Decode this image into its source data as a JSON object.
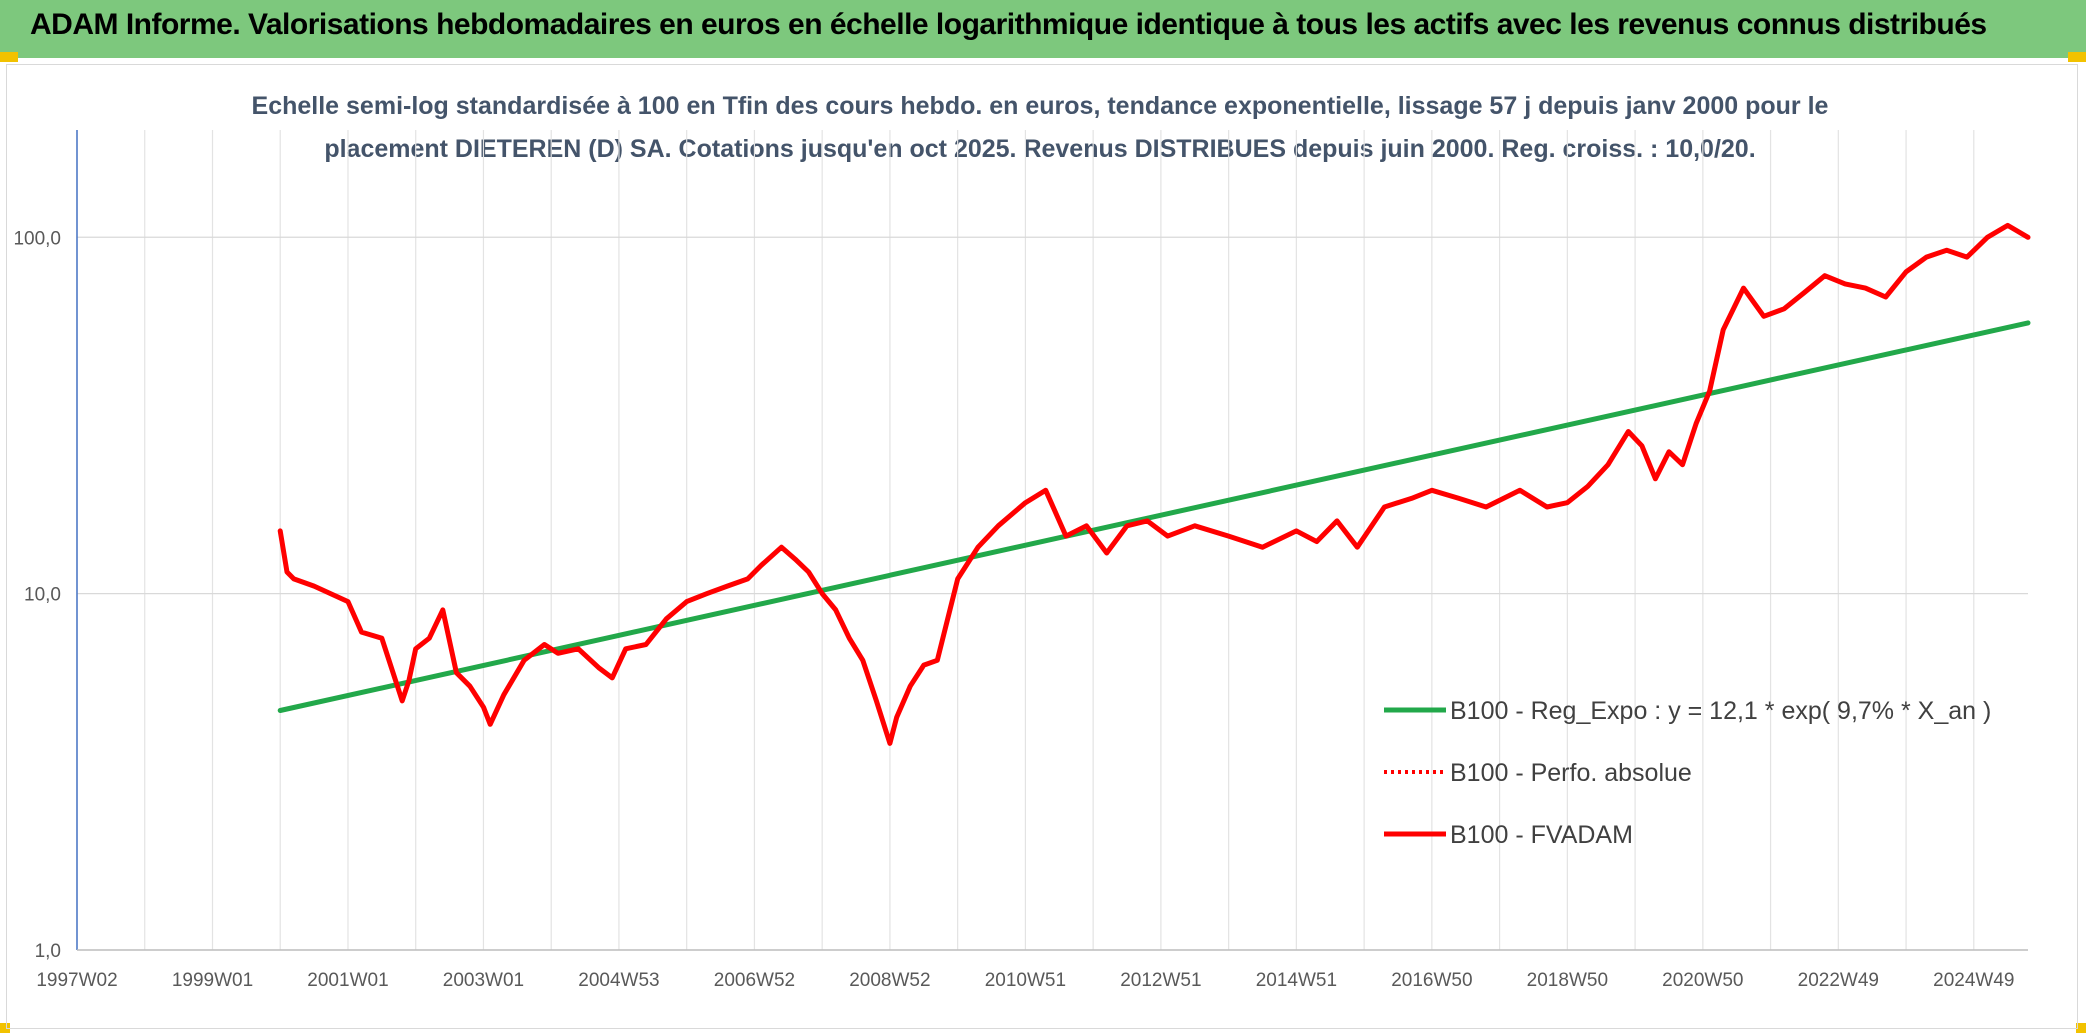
{
  "header": {
    "title": "ADAM Informe. Valorisations hebdomadaires en euros en échelle logarithmique identique à tous les actifs avec les revenus connus distribués"
  },
  "chart_data": {
    "type": "line",
    "title_line1": "Echelle semi-log standardisée à 100 en Tfin des cours hebdo. en euros, tendance exponentielle, lissage 57 j depuis janv 2000 pour le",
    "title_line2": "placement DIETEREN (D) SA. Cotations jusqu'en oct 2025. Revenus DISTRIBUES depuis juin 2000. Reg. croiss. : 10,0/20.",
    "y_scale": "log",
    "ylim": [
      1,
      200
    ],
    "xlim": [
      1997.0,
      2025.8
    ],
    "grid": true,
    "legend_position": "right",
    "y_ticks": [
      {
        "value": 1,
        "label": "1,0"
      },
      {
        "value": 10,
        "label": "10,0"
      },
      {
        "value": 100,
        "label": "100,0"
      }
    ],
    "x_ticks": [
      {
        "value": 1997.0,
        "label": "1997W02"
      },
      {
        "value": 1999.0,
        "label": "1999W01"
      },
      {
        "value": 2001.0,
        "label": "2001W01"
      },
      {
        "value": 2003.0,
        "label": "2003W01"
      },
      {
        "value": 2005.0,
        "label": "2004W53"
      },
      {
        "value": 2007.0,
        "label": "2006W52"
      },
      {
        "value": 2009.0,
        "label": "2008W52"
      },
      {
        "value": 2011.0,
        "label": "2010W51"
      },
      {
        "value": 2013.0,
        "label": "2012W51"
      },
      {
        "value": 2015.0,
        "label": "2014W51"
      },
      {
        "value": 2017.0,
        "label": "2016W50"
      },
      {
        "value": 2019.0,
        "label": "2018W50"
      },
      {
        "value": 2021.0,
        "label": "2020W50"
      },
      {
        "value": 2023.0,
        "label": "2022W49"
      },
      {
        "value": 2025.0,
        "label": "2024W49"
      }
    ],
    "series": [
      {
        "name": "B100 - Reg_Expo : y = 12,1 * exp( 9,7% *  X_an )",
        "color": "#22a84a",
        "style": "solid",
        "x": [
          2000.0,
          2025.8
        ],
        "y": [
          4.7,
          57.5
        ]
      },
      {
        "name": "B100 - Perfo. absolue",
        "color": "#ff0000",
        "style": "dotted",
        "x": [],
        "y": []
      },
      {
        "name": "B100 - FVADAM",
        "color": "#ff0000",
        "style": "solid",
        "x": [
          2000.0,
          2000.1,
          2000.2,
          2000.5,
          2001.0,
          2001.2,
          2001.5,
          2001.8,
          2001.9,
          2002.0,
          2002.2,
          2002.4,
          2002.6,
          2002.8,
          2003.0,
          2003.1,
          2003.3,
          2003.6,
          2003.9,
          2004.1,
          2004.4,
          2004.7,
          2004.9,
          2005.1,
          2005.4,
          2005.7,
          2006.0,
          2006.3,
          2006.6,
          2006.9,
          2007.1,
          2007.4,
          2007.6,
          2007.8,
          2008.0,
          2008.2,
          2008.4,
          2008.6,
          2008.8,
          2009.0,
          2009.1,
          2009.3,
          2009.5,
          2009.7,
          2010.0,
          2010.3,
          2010.6,
          2011.0,
          2011.3,
          2011.6,
          2011.9,
          2012.2,
          2012.5,
          2012.8,
          2013.1,
          2013.5,
          2014.0,
          2014.5,
          2015.0,
          2015.3,
          2015.6,
          2015.9,
          2016.3,
          2016.7,
          2017.0,
          2017.4,
          2017.8,
          2018.3,
          2018.7,
          2019.0,
          2019.3,
          2019.6,
          2019.9,
          2020.1,
          2020.3,
          2020.5,
          2020.7,
          2020.9,
          2021.1,
          2021.3,
          2021.6,
          2021.9,
          2022.2,
          2022.5,
          2022.8,
          2023.1,
          2023.4,
          2023.7,
          2024.0,
          2024.3,
          2024.6,
          2024.9,
          2025.2,
          2025.5,
          2025.8
        ],
        "y": [
          15.0,
          11.5,
          11.0,
          10.5,
          9.5,
          7.8,
          7.5,
          5.0,
          5.7,
          7.0,
          7.5,
          9.0,
          6.0,
          5.5,
          4.8,
          4.3,
          5.2,
          6.5,
          7.2,
          6.8,
          7.0,
          6.2,
          5.8,
          7.0,
          7.2,
          8.5,
          9.5,
          10.0,
          10.5,
          11.0,
          12.0,
          13.5,
          12.5,
          11.5,
          10.0,
          9.0,
          7.5,
          6.5,
          5.0,
          3.8,
          4.5,
          5.5,
          6.3,
          6.5,
          11.0,
          13.5,
          15.5,
          18.0,
          19.5,
          14.5,
          15.5,
          13.0,
          15.5,
          16.0,
          14.5,
          15.5,
          14.5,
          13.5,
          15.0,
          14.0,
          16.0,
          13.5,
          17.5,
          18.5,
          19.5,
          18.5,
          17.5,
          19.5,
          17.5,
          18.0,
          20.0,
          23.0,
          28.5,
          26.0,
          21.0,
          25.0,
          23.0,
          30.0,
          37.0,
          55.0,
          72.0,
          60.0,
          63.0,
          70.0,
          78.0,
          74.0,
          72.0,
          68.0,
          80.0,
          88.0,
          92.0,
          88.0,
          100.0,
          108.0,
          100.0
        ]
      }
    ]
  }
}
